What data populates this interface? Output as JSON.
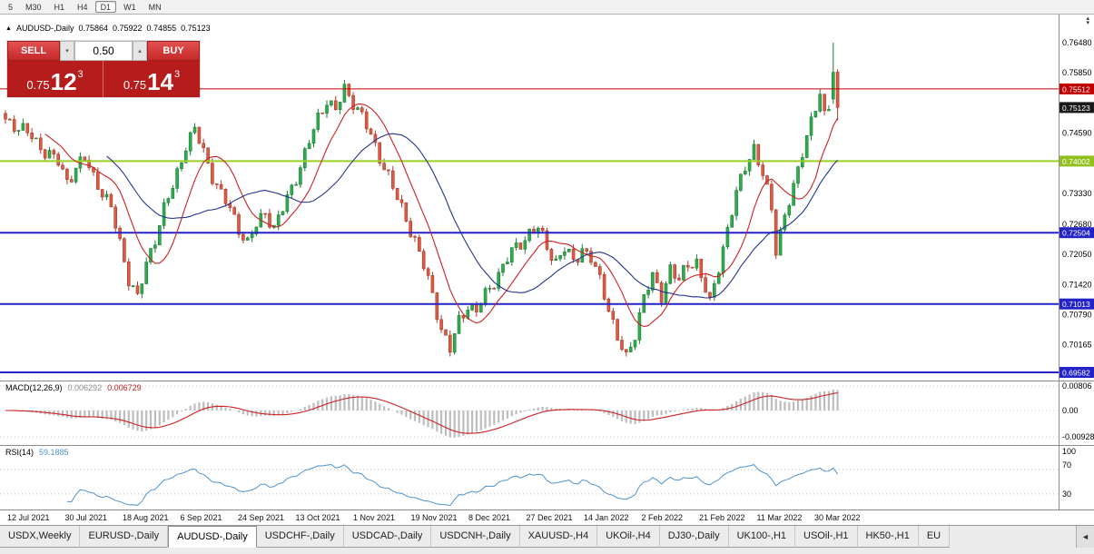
{
  "toolbar": {
    "timeframes": [
      "5",
      "M30",
      "H1",
      "H4",
      "D1",
      "W1",
      "MN"
    ],
    "active": "D1"
  },
  "chart_header": {
    "symbol": "AUDUSD-,Daily",
    "open": "0.75864",
    "high": "0.75922",
    "low": "0.74855",
    "close": "0.75123"
  },
  "trade_panel": {
    "sell_label": "SELL",
    "buy_label": "BUY",
    "volume": "0.50",
    "bid": {
      "main": "0.75",
      "pips": "12",
      "point": "3"
    },
    "ask": {
      "main": "0.75",
      "pips": "14",
      "point": "3"
    }
  },
  "tabs": {
    "items": [
      "USDX,Weekly",
      "EURUSD-,Daily",
      "AUDUSD-,Daily",
      "USDCHF-,Daily",
      "USDCAD-,Daily",
      "USDCNH-,Daily",
      "XAUUSD-,H4",
      "UKOil-,H4",
      "DJ30-,Daily",
      "UK100-,H1",
      "USOil-,H1",
      "HK50-,H1",
      "EU"
    ],
    "active_index": 2,
    "scroll_left_glyph": "◄"
  },
  "chart_data": {
    "type": "candlestick",
    "symbol": "AUDUSD-",
    "timeframe": "Daily",
    "ohlc_current": {
      "open": 0.75864,
      "high": 0.75922,
      "low": 0.74855,
      "close": 0.75123
    },
    "y_axis": {
      "max": 0.7648,
      "min": 0.69582,
      "labels": [
        {
          "label": "0.76480",
          "price": 0.7648
        },
        {
          "label": "0.75850",
          "price": 0.7585
        },
        {
          "label": "0.74590",
          "price": 0.7459
        },
        {
          "label": "0.73330",
          "price": 0.7333
        },
        {
          "label": "0.72680",
          "price": 0.7268
        },
        {
          "label": "0.72050",
          "price": 0.7205
        },
        {
          "label": "0.71420",
          "price": 0.7142
        },
        {
          "label": "0.70790",
          "price": 0.7079
        },
        {
          "label": "0.70165",
          "price": 0.70165
        }
      ]
    },
    "price_tags": [
      {
        "label": "0.75512",
        "price": 0.75512,
        "color": "#c00000"
      },
      {
        "label": "0.75123",
        "price": 0.75123,
        "color": "#1a1a1a"
      },
      {
        "label": "0.74002",
        "price": 0.74002,
        "color": "#93c01f"
      },
      {
        "label": "0.72504",
        "price": 0.72504,
        "color": "#2323c8"
      },
      {
        "label": "0.71013",
        "price": 0.71013,
        "color": "#2323c8"
      },
      {
        "label": "0.69582",
        "price": 0.69582,
        "color": "#2323c8"
      }
    ],
    "hlines": [
      {
        "name": "resistance-line",
        "price": 0.75512,
        "color": "#c00000",
        "width": 1
      },
      {
        "name": "support-line-green",
        "price": 0.74002,
        "color": "#9bcf29",
        "width": 2
      },
      {
        "name": "support-line-blue-1",
        "price": 0.72504,
        "color": "#2323c8",
        "width": 2
      },
      {
        "name": "support-line-blue-2",
        "price": 0.71013,
        "color": "#2323c8",
        "width": 2
      },
      {
        "name": "support-line-blue-3",
        "price": 0.69582,
        "color": "#2323c8",
        "width": 2
      }
    ],
    "x_labels": [
      "12 Jul 2021",
      "30 Jul 2021",
      "18 Aug 2021",
      "6 Sep 2021",
      "24 Sep 2021",
      "13 Oct 2021",
      "1 Nov 2021",
      "19 Nov 2021",
      "8 Dec 2021",
      "27 Dec 2021",
      "14 Jan 2022",
      "2 Feb 2022",
      "21 Feb 2022",
      "11 Mar 2022",
      "30 Mar 2022"
    ],
    "close_anchors": [
      [
        0,
        0.7488
      ],
      [
        3,
        0.747
      ],
      [
        6,
        0.7452
      ],
      [
        9,
        0.742
      ],
      [
        12,
        0.7398
      ],
      [
        14,
        0.736
      ],
      [
        16,
        0.7385
      ],
      [
        18,
        0.7405
      ],
      [
        20,
        0.737
      ],
      [
        22,
        0.7335
      ],
      [
        24,
        0.73
      ],
      [
        26,
        0.723
      ],
      [
        28,
        0.7155
      ],
      [
        30,
        0.7112
      ],
      [
        32,
        0.7185
      ],
      [
        34,
        0.724
      ],
      [
        36,
        0.73
      ],
      [
        38,
        0.7345
      ],
      [
        41,
        0.7435
      ],
      [
        43,
        0.7465
      ],
      [
        45,
        0.742
      ],
      [
        47,
        0.737
      ],
      [
        49,
        0.733
      ],
      [
        51,
        0.73
      ],
      [
        53,
        0.726
      ],
      [
        55,
        0.7228
      ],
      [
        57,
        0.7265
      ],
      [
        59,
        0.7295
      ],
      [
        61,
        0.726
      ],
      [
        63,
        0.73
      ],
      [
        65,
        0.7345
      ],
      [
        67,
        0.739
      ],
      [
        69,
        0.744
      ],
      [
        71,
        0.749
      ],
      [
        73,
        0.753
      ],
      [
        75,
        0.7505
      ],
      [
        77,
        0.755
      ],
      [
        79,
        0.7525
      ],
      [
        81,
        0.7495
      ],
      [
        83,
        0.745
      ],
      [
        85,
        0.741
      ],
      [
        87,
        0.737
      ],
      [
        89,
        0.732
      ],
      [
        91,
        0.728
      ],
      [
        93,
        0.7235
      ],
      [
        95,
        0.718
      ],
      [
        97,
        0.712
      ],
      [
        99,
        0.705
      ],
      [
        101,
        0.7005
      ],
      [
        103,
        0.7065
      ],
      [
        105,
        0.71
      ],
      [
        107,
        0.7085
      ],
      [
        109,
        0.712
      ],
      [
        111,
        0.715
      ],
      [
        113,
        0.718
      ],
      [
        115,
        0.721
      ],
      [
        117,
        0.723
      ],
      [
        119,
        0.725
      ],
      [
        121,
        0.7258
      ],
      [
        123,
        0.7222
      ],
      [
        125,
        0.719
      ],
      [
        127,
        0.7215
      ],
      [
        129,
        0.719
      ],
      [
        131,
        0.7218
      ],
      [
        133,
        0.7195
      ],
      [
        135,
        0.715
      ],
      [
        137,
        0.7095
      ],
      [
        139,
        0.703
      ],
      [
        141,
        0.6985
      ],
      [
        143,
        0.704
      ],
      [
        145,
        0.712
      ],
      [
        147,
        0.7155
      ],
      [
        149,
        0.7118
      ],
      [
        151,
        0.7178
      ],
      [
        153,
        0.7148
      ],
      [
        155,
        0.7185
      ],
      [
        157,
        0.719
      ],
      [
        159,
        0.713
      ],
      [
        160,
        0.71
      ],
      [
        162,
        0.718
      ],
      [
        164,
        0.726
      ],
      [
        166,
        0.733
      ],
      [
        168,
        0.739
      ],
      [
        170,
        0.743
      ],
      [
        172,
        0.737
      ],
      [
        174,
        0.73
      ],
      [
        175,
        0.7215
      ],
      [
        177,
        0.729
      ],
      [
        179,
        0.734
      ],
      [
        181,
        0.742
      ],
      [
        183,
        0.749
      ],
      [
        184,
        0.7515
      ],
      [
        185,
        0.7535
      ],
      [
        186,
        0.749
      ],
      [
        187,
        0.7515
      ]
    ],
    "last_candles": [
      {
        "o": 0.753,
        "h": 0.7648,
        "l": 0.752,
        "c": 0.7586
      },
      {
        "o": 0.75864,
        "h": 0.75922,
        "l": 0.74855,
        "c": 0.75123
      }
    ],
    "up_color": "#2fad4e",
    "up_border": "#1d7e36",
    "down_color": "#dd5b45",
    "down_border": "#a93c2b",
    "moving_averages": [
      {
        "period": 10,
        "color": "#cc2222"
      },
      {
        "period": 24,
        "color": "#26348f"
      }
    ],
    "macd": {
      "label": "MACD(12,26,9)",
      "main": 0.006292,
      "signal": 0.006729,
      "axis_labels": [
        "0.00806",
        "0.00",
        "-0.00928"
      ],
      "hist_color": "#bdbdbd",
      "signal_color": "#cc2222"
    },
    "rsi": {
      "label": "RSI(14)",
      "period": 14,
      "value": 59.1885,
      "axis_labels": [
        "100",
        "70",
        "30"
      ],
      "levels": [
        70,
        30
      ],
      "color": "#4f94cd"
    }
  }
}
